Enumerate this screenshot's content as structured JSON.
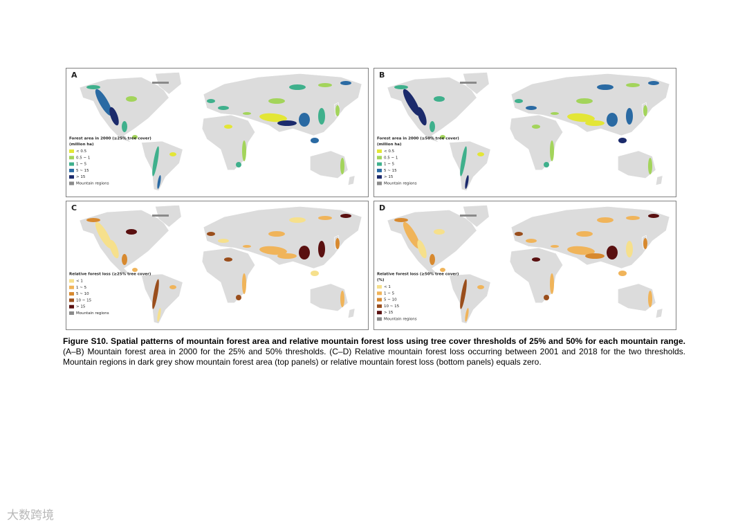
{
  "panels": [
    {
      "label": "A",
      "legend": {
        "title": "Forest area in 2000 (≥25% tree cover)",
        "unit": "(million ha)",
        "items": [
          {
            "text": "< 0.5",
            "color": "#e3e636"
          },
          {
            "text": "0.5 ~ 1",
            "color": "#a3d45b"
          },
          {
            "text": "1 ~ 5",
            "color": "#3fb08c"
          },
          {
            "text": "5 ~ 15",
            "color": "#2a6aa3"
          },
          {
            "text": "> 15",
            "color": "#1b2a6b"
          },
          {
            "text": "Mountain regions",
            "color": "#8a8a8a"
          }
        ]
      }
    },
    {
      "label": "B",
      "legend": {
        "title": "Forest area in 2000 (≥50% tree cover)",
        "unit": "(million ha)",
        "items": [
          {
            "text": "< 0.5",
            "color": "#e3e636"
          },
          {
            "text": "0.5 ~ 1",
            "color": "#a3d45b"
          },
          {
            "text": "1 ~ 5",
            "color": "#3fb08c"
          },
          {
            "text": "5 ~ 15",
            "color": "#2a6aa3"
          },
          {
            "text": "> 15",
            "color": "#1b2a6b"
          },
          {
            "text": "Mountain regions",
            "color": "#8a8a8a"
          }
        ]
      }
    },
    {
      "label": "C",
      "legend": {
        "title": "Relative forest loss (≥25% tree cover)",
        "items": [
          {
            "text": "< 1",
            "color": "#f6e08c"
          },
          {
            "text": "1 ~ 5",
            "color": "#f0b45a"
          },
          {
            "text": "5 ~ 10",
            "color": "#d7892f"
          },
          {
            "text": "10 ~ 15",
            "color": "#9a4e1c"
          },
          {
            "text": "> 15",
            "color": "#5a1010"
          },
          {
            "text": "Mountain regions",
            "color": "#8a8a8a"
          }
        ]
      }
    },
    {
      "label": "D",
      "legend": {
        "title": "Relative forest loss (≥50% tree cover)",
        "unit": "(%)",
        "items": [
          {
            "text": "< 1",
            "color": "#f6e08c"
          },
          {
            "text": "1 ~ 5",
            "color": "#f0b45a"
          },
          {
            "text": "5 ~ 10",
            "color": "#d7892f"
          },
          {
            "text": "10 ~ 15",
            "color": "#9a4e1c"
          },
          {
            "text": "> 15",
            "color": "#5a1010"
          },
          {
            "text": "Mountain regions",
            "color": "#8a8a8a"
          }
        ]
      }
    }
  ],
  "caption": {
    "bold": "Figure S10. Spatial patterns of mountain forest area and relative mountain forest loss using tree cover thresholds of 25% and 50% for each mountain range.",
    "text": "(A–B) Mountain forest area in 2000 for the 25% and 50% thresholds. (C–D) Relative mountain forest loss occurring between 2001 and 2018 for the two thresholds. Mountain regions in dark grey show mountain forest area (top panels) or relative mountain forest loss (bottom panels) equals zero."
  },
  "watermark": "大数跨境"
}
